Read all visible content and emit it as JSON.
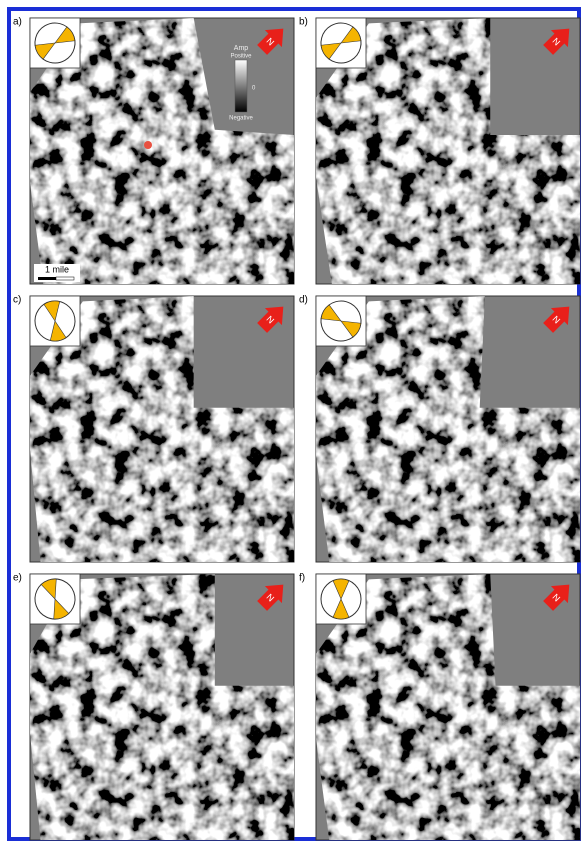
{
  "panels": [
    {
      "label": "a)",
      "north": "N"
    },
    {
      "label": "b)",
      "north": "N"
    },
    {
      "label": "c)",
      "north": "N"
    },
    {
      "label": "d)",
      "north": "N"
    },
    {
      "label": "e)",
      "north": "N"
    },
    {
      "label": "f)",
      "north": "N"
    }
  ],
  "legend": {
    "title": "Amp",
    "positive": "Positive",
    "zero": "0",
    "negative": "Negative"
  },
  "scale_bar": "1 mile"
}
